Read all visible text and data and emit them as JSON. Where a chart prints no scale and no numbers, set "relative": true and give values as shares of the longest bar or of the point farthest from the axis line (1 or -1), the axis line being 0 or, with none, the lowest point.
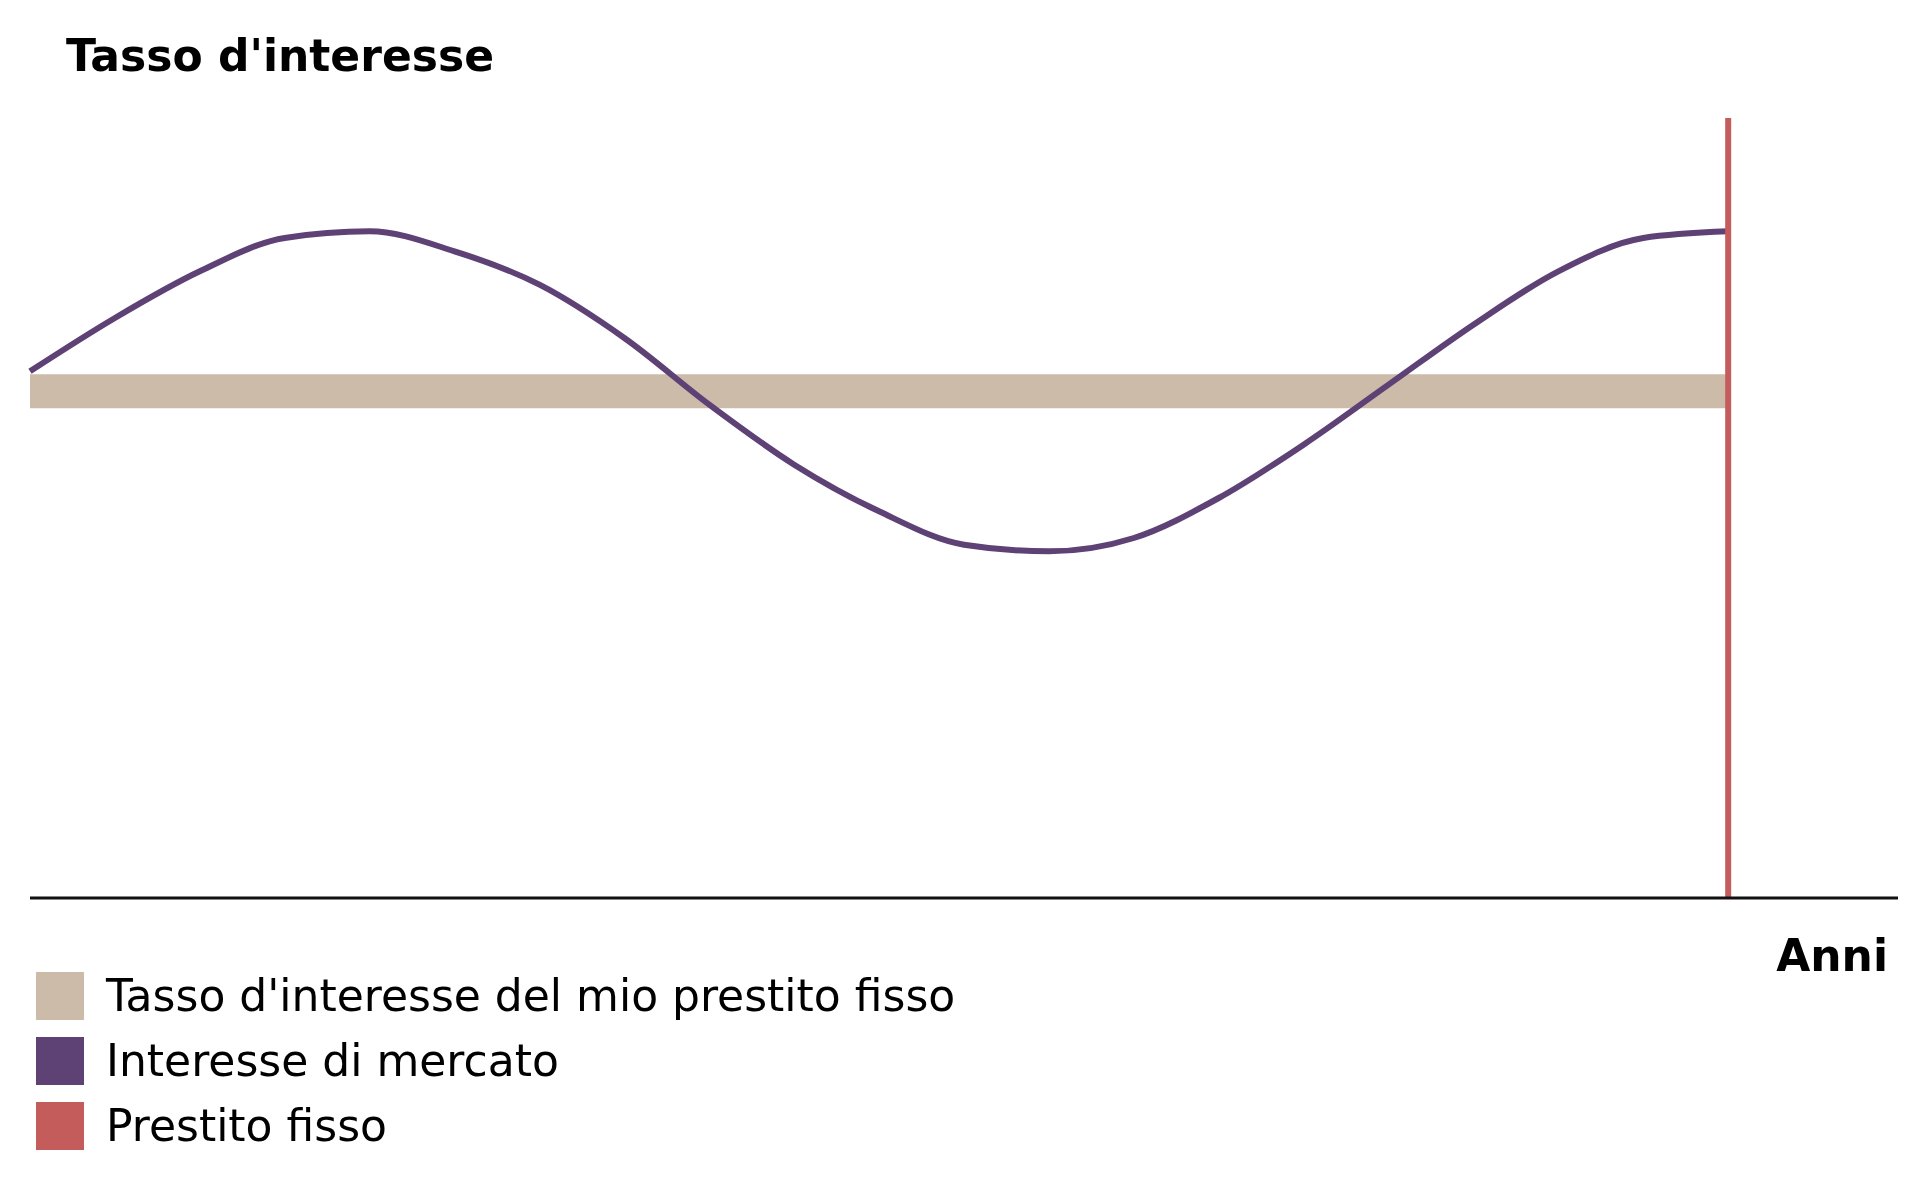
{
  "chart_data": {
    "type": "line",
    "title": "Tasso d'interesse",
    "xlabel": "Anni",
    "relative": true,
    "categories": [
      null,
      null,
      null,
      null,
      null,
      null,
      null,
      null,
      null,
      null,
      null,
      null,
      null,
      null,
      null,
      null,
      null,
      null,
      null,
      null,
      null,
      null,
      null
    ],
    "series": [
      {
        "name": "Tasso d'interesse del mio prestito fisso",
        "color": "#cbbba8",
        "values": [
          0.76,
          0.76,
          0.76,
          0.76,
          0.76,
          0.76,
          0.76,
          0.76,
          0.76,
          0.76,
          0.76,
          0.76,
          0.76,
          0.76,
          0.76,
          0.76,
          0.76,
          0.76,
          0.76,
          0.76,
          0.76,
          null,
          null
        ]
      },
      {
        "name": "Interesse di mercato",
        "color": "#5e4275",
        "values": [
          0.79,
          0.87,
          0.94,
          0.99,
          1.0,
          0.97,
          0.92,
          0.84,
          0.74,
          0.65,
          0.58,
          0.53,
          0.52,
          0.54,
          0.6,
          0.68,
          0.77,
          0.86,
          0.94,
          0.99,
          1.0,
          null,
          null
        ]
      }
    ],
    "ref_lines": [
      {
        "axis": "x",
        "label": "Prestito fisso",
        "color": "#c45c5c"
      }
    ],
    "legend": "bottom left",
    "grid": false,
    "marker": "none",
    "line_style": "solid"
  }
}
